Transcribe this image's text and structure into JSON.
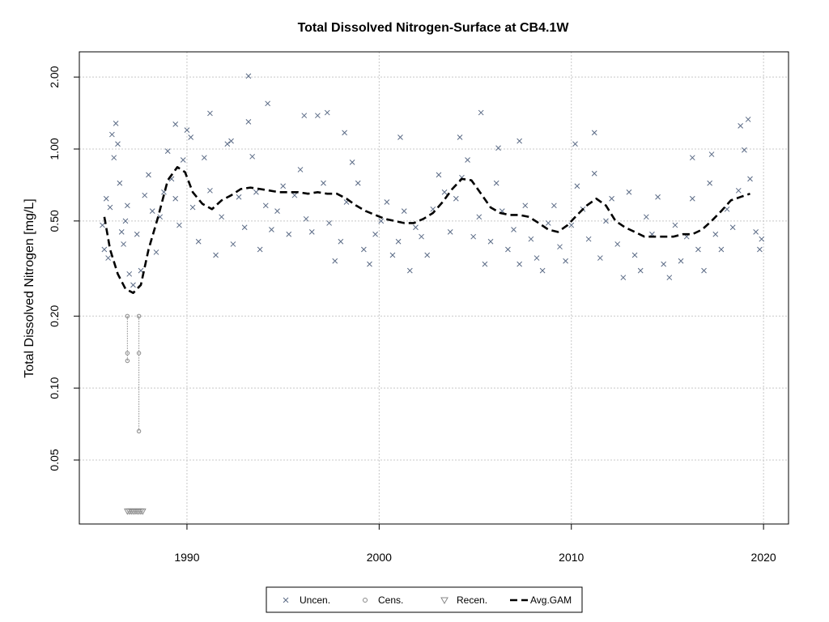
{
  "chart_data": {
    "type": "scatter",
    "title": "Total Dissolved Nitrogen-Surface at CB4.1W",
    "xlabel": "",
    "ylabel": "Total Dissolved Nitrogen [mg/L]",
    "x_scale": "linear",
    "y_scale": "log",
    "xlim": [
      1984.4,
      2021.3
    ],
    "ylim": [
      0.027,
      2.55
    ],
    "x_ticks": [
      1990,
      2000,
      2010,
      2020
    ],
    "x_tick_labels": [
      "1990",
      "2000",
      "2010",
      "2020"
    ],
    "y_ticks": [
      0.05,
      0.1,
      0.2,
      0.5,
      1.0,
      2.0
    ],
    "y_tick_labels": [
      "0.05",
      "0.10",
      "0.20",
      "0.50",
      "1.00",
      "2.00"
    ],
    "grid": "dotted at ticks",
    "legend_position": "bottom-center, below plot",
    "colors": {
      "points": "#5a6a85",
      "censored": "#888888",
      "gam": "#000000",
      "grid": "#c8c8c8"
    },
    "legend": [
      {
        "label": "Uncen.",
        "symbol": "x"
      },
      {
        "label": "Cens.",
        "symbol": "circle"
      },
      {
        "label": "Recen.",
        "symbol": "triangle-down"
      },
      {
        "label": "Avg.GAM",
        "symbol": "dashed-line"
      }
    ],
    "series": [
      {
        "name": "Uncen.",
        "x": [
          1985.6,
          1985.7,
          1985.8,
          1985.9,
          1986.0,
          1986.1,
          1986.2,
          1986.3,
          1986.4,
          1986.5,
          1986.6,
          1986.7,
          1986.8,
          1986.9,
          1987.0,
          1987.2,
          1987.4,
          1987.6,
          1987.8,
          1988.0,
          1988.2,
          1988.4,
          1988.6,
          1988.8,
          1989.0,
          1989.2,
          1989.4,
          1989.6,
          1989.8,
          1990.0,
          1990.3,
          1990.6,
          1990.9,
          1991.2,
          1991.5,
          1991.8,
          1992.1,
          1992.4,
          1992.7,
          1993.0,
          1993.2,
          1993.4,
          1993.6,
          1993.8,
          1994.1,
          1994.4,
          1994.7,
          1995.0,
          1995.3,
          1995.6,
          1995.9,
          1996.2,
          1996.5,
          1996.8,
          1997.1,
          1997.4,
          1997.7,
          1998.0,
          1998.3,
          1998.6,
          1998.9,
          1999.2,
          1999.5,
          1999.8,
          2000.1,
          2000.4,
          2000.7,
          2001.0,
          2001.3,
          2001.6,
          2001.9,
          2002.2,
          2002.5,
          2002.8,
          2003.1,
          2003.4,
          2003.7,
          2004.0,
          2004.3,
          2004.6,
          2004.9,
          2005.2,
          2005.5,
          2005.8,
          2006.1,
          2006.4,
          2006.7,
          2007.0,
          2007.3,
          2007.6,
          2007.9,
          2008.2,
          2008.5,
          2008.8,
          2009.1,
          2009.4,
          2009.7,
          2010.0,
          2010.3,
          2010.6,
          2010.9,
          2011.2,
          2011.5,
          2011.8,
          2012.1,
          2012.4,
          2012.7,
          2013.0,
          2013.3,
          2013.6,
          2013.9,
          2014.2,
          2014.5,
          2014.8,
          2015.1,
          2015.4,
          2015.7,
          2016.0,
          2016.3,
          2016.6,
          2016.9,
          2017.2,
          2017.5,
          2017.8,
          2018.1,
          2018.4,
          2018.7,
          2019.0,
          2019.3,
          2019.6,
          2019.8,
          2019.9,
          1993.2,
          1996.1,
          1997.3,
          2005.3,
          1991.2,
          1989.4,
          1994.2,
          2011.2,
          2018.8,
          2019.2,
          1990.2,
          1992.3,
          1998.2,
          2001.1,
          2004.2,
          2006.2,
          2007.3,
          2010.2,
          2016.3,
          2017.3
        ],
        "y": [
          0.48,
          0.38,
          0.62,
          0.35,
          0.57,
          1.15,
          0.92,
          1.28,
          1.05,
          0.72,
          0.45,
          0.4,
          0.5,
          0.58,
          0.3,
          0.27,
          0.44,
          0.31,
          0.64,
          0.78,
          0.55,
          0.37,
          0.52,
          0.66,
          0.98,
          0.75,
          0.62,
          0.48,
          0.9,
          1.2,
          0.57,
          0.41,
          0.92,
          0.67,
          0.36,
          0.52,
          1.05,
          0.4,
          0.63,
          0.47,
          1.3,
          0.93,
          0.66,
          0.38,
          0.58,
          0.46,
          0.55,
          0.7,
          0.44,
          0.64,
          0.82,
          0.51,
          0.45,
          1.38,
          0.72,
          0.49,
          0.34,
          0.41,
          0.6,
          0.88,
          0.72,
          0.38,
          0.33,
          0.44,
          0.5,
          0.6,
          0.36,
          0.41,
          0.55,
          0.31,
          0.47,
          0.43,
          0.36,
          0.56,
          0.78,
          0.66,
          0.45,
          0.62,
          0.76,
          0.9,
          0.43,
          0.52,
          0.33,
          0.41,
          0.72,
          0.55,
          0.38,
          0.46,
          0.33,
          0.58,
          0.42,
          0.35,
          0.31,
          0.49,
          0.58,
          0.39,
          0.34,
          0.48,
          0.7,
          0.56,
          0.42,
          0.79,
          0.35,
          0.5,
          0.62,
          0.4,
          0.29,
          0.66,
          0.36,
          0.31,
          0.52,
          0.44,
          0.63,
          0.33,
          0.29,
          0.48,
          0.34,
          0.43,
          0.62,
          0.38,
          0.31,
          0.72,
          0.44,
          0.38,
          0.56,
          0.47,
          0.67,
          0.99,
          0.75,
          0.45,
          0.38,
          0.42,
          2.02,
          1.38,
          1.42,
          1.42,
          1.41,
          1.27,
          1.55,
          1.17,
          1.25,
          1.33,
          1.12,
          1.08,
          1.17,
          1.12,
          1.12,
          1.01,
          1.08,
          1.05,
          0.92,
          0.95
        ]
      },
      {
        "name": "Cens.",
        "x": [
          1986.9,
          1986.9,
          1986.9,
          1987.5,
          1987.5,
          1987.5
        ],
        "y": [
          0.2,
          0.14,
          0.13,
          0.2,
          0.14,
          0.066
        ]
      },
      {
        "name": "Recen.",
        "x": [
          1986.9,
          1987.0,
          1987.1,
          1987.2,
          1987.3,
          1987.4,
          1987.5,
          1987.6,
          1987.7
        ],
        "y": [
          0.0305,
          0.0305,
          0.0305,
          0.0305,
          0.0305,
          0.0305,
          0.0305,
          0.0305,
          0.0305
        ]
      },
      {
        "name": "Avg.GAM",
        "x": [
          1985.7,
          1986.0,
          1986.4,
          1986.8,
          1987.2,
          1987.6,
          1988.0,
          1988.5,
          1989.0,
          1989.5,
          1989.9,
          1990.3,
          1990.8,
          1991.3,
          1991.8,
          1992.3,
          1992.8,
          1993.3,
          1993.8,
          1994.3,
          1994.8,
          1995.3,
          1995.8,
          1996.3,
          1996.8,
          1997.3,
          1997.8,
          1998.3,
          1998.8,
          1999.3,
          1999.8,
          2000.3,
          2000.8,
          2001.3,
          2001.8,
          2002.3,
          2002.8,
          2003.3,
          2003.8,
          2004.3,
          2004.8,
          2005.3,
          2005.8,
          2006.3,
          2006.8,
          2007.3,
          2007.8,
          2008.3,
          2008.8,
          2009.3,
          2009.8,
          2010.3,
          2010.8,
          2011.3,
          2011.8,
          2012.3,
          2012.8,
          2013.3,
          2013.8,
          2014.3,
          2014.8,
          2015.3,
          2015.8,
          2016.3,
          2016.8,
          2017.3,
          2017.8,
          2018.3,
          2018.8,
          2019.3
        ],
        "y": [
          0.52,
          0.38,
          0.3,
          0.26,
          0.25,
          0.27,
          0.38,
          0.52,
          0.74,
          0.84,
          0.8,
          0.66,
          0.59,
          0.56,
          0.61,
          0.64,
          0.68,
          0.69,
          0.68,
          0.67,
          0.66,
          0.66,
          0.66,
          0.65,
          0.66,
          0.65,
          0.65,
          0.62,
          0.58,
          0.55,
          0.53,
          0.51,
          0.5,
          0.49,
          0.49,
          0.51,
          0.54,
          0.6,
          0.68,
          0.75,
          0.74,
          0.65,
          0.57,
          0.54,
          0.53,
          0.53,
          0.52,
          0.49,
          0.46,
          0.45,
          0.48,
          0.53,
          0.58,
          0.62,
          0.58,
          0.5,
          0.47,
          0.45,
          0.43,
          0.43,
          0.43,
          0.43,
          0.44,
          0.44,
          0.46,
          0.5,
          0.55,
          0.61,
          0.63,
          0.65
        ]
      }
    ]
  }
}
